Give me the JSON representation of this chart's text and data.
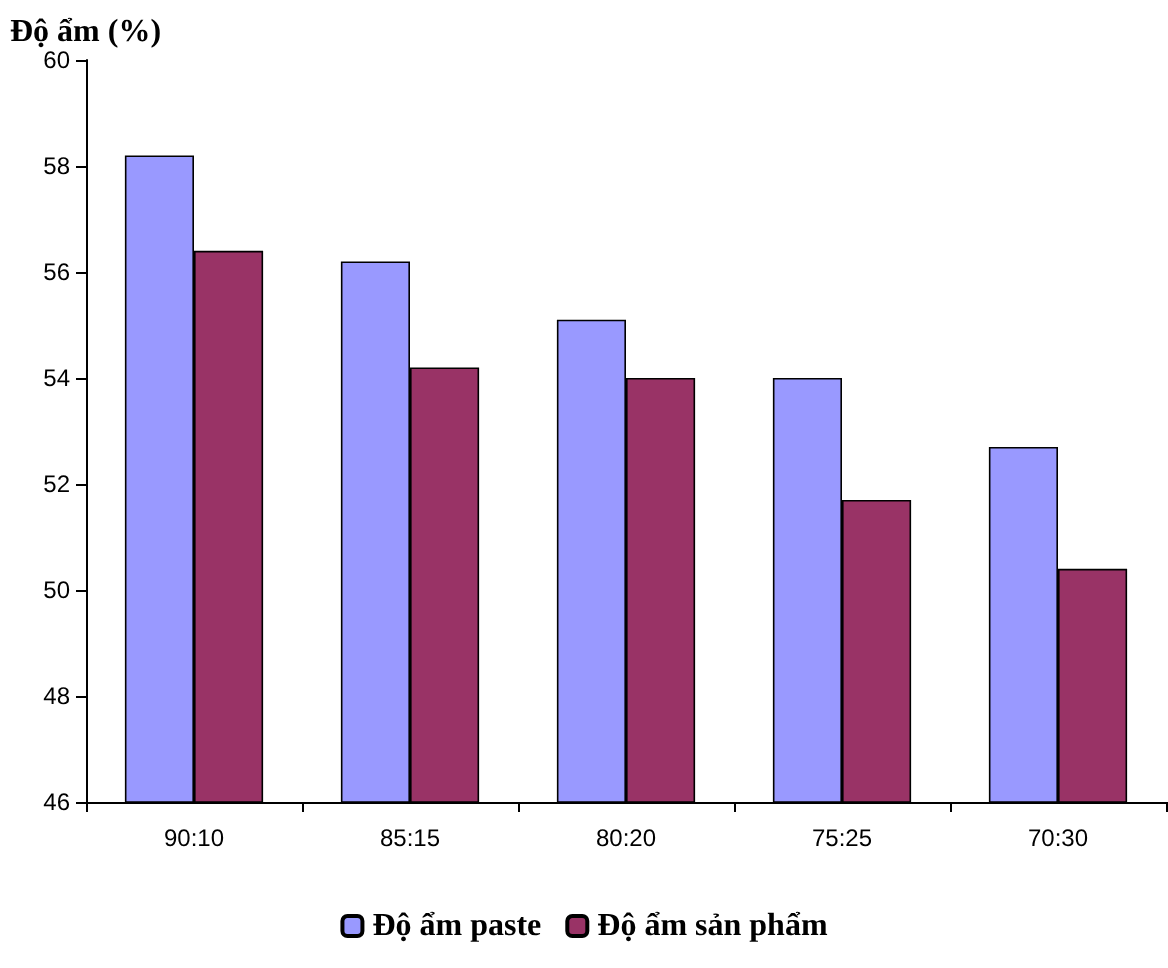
{
  "chart_data": {
    "type": "bar",
    "ylabel": "Độ ẩm (%)",
    "categories": [
      "90:10",
      "85:15",
      "80:20",
      "75:25",
      "70:30"
    ],
    "series": [
      {
        "name": "Độ ẩm paste",
        "color": "#9999ff",
        "values": [
          58.2,
          56.2,
          55.1,
          54.0,
          52.7
        ]
      },
      {
        "name": "Độ ẩm sản phẩm",
        "color": "#993366",
        "values": [
          56.4,
          54.2,
          54.0,
          51.7,
          50.4
        ]
      }
    ],
    "ylim": [
      46,
      60
    ],
    "yticks": [
      46,
      48,
      50,
      52,
      54,
      56,
      58,
      60
    ],
    "grid": false,
    "legend": "bottom"
  }
}
